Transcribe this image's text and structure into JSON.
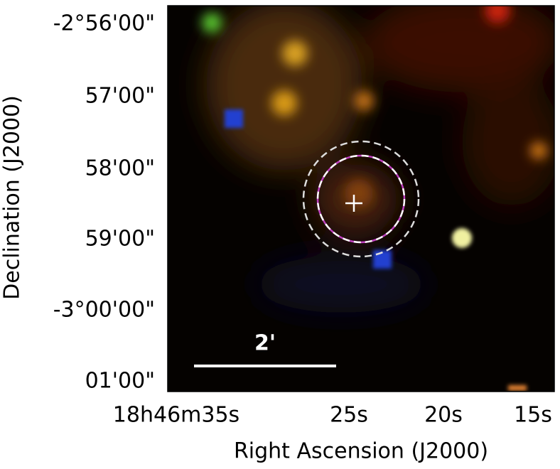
{
  "axes": {
    "x_label": "Right Ascension (J2000)",
    "y_label": "Declination (J2000)",
    "x_ticks": [
      "18h46m35s",
      "25s",
      "20s",
      "15s"
    ],
    "y_ticks": [
      "-2°56'00\"",
      "57'00\"",
      "58'00\"",
      "59'00\"",
      "-3°00'00\"",
      "01'00\""
    ]
  },
  "scale_bar": {
    "label": "2'"
  }
}
